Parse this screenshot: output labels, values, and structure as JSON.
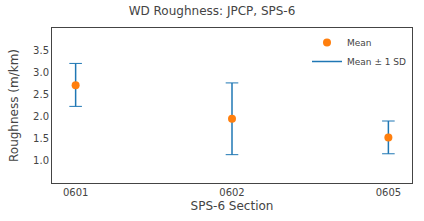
{
  "chart_data": {
    "type": "scatter",
    "title": "WD Roughness: JPCP, SPS-6",
    "xlabel": "SPS-6 Section",
    "ylabel": "Roughness (m/km)",
    "categories": [
      "0601",
      "0602",
      "0605"
    ],
    "series": [
      {
        "name": "Mean",
        "type": "scatter",
        "marker": "circle",
        "values": [
          2.71,
          1.95,
          1.53
        ]
      },
      {
        "name": "Mean ± 1 SD",
        "type": "errorbar",
        "upper": [
          3.2,
          2.76,
          1.9
        ],
        "lower": [
          2.23,
          1.14,
          1.16
        ]
      }
    ],
    "ylim": [
      0.5,
      4.0
    ],
    "yticks": [
      {
        "value": 1.0,
        "label": "1.0"
      },
      1.5,
      {
        "value": 2.0,
        "label": "2.0"
      },
      2.5,
      {
        "value": 3.0,
        "label": "3.0"
      },
      3.5
    ],
    "grid": false,
    "legend": "upper right"
  }
}
